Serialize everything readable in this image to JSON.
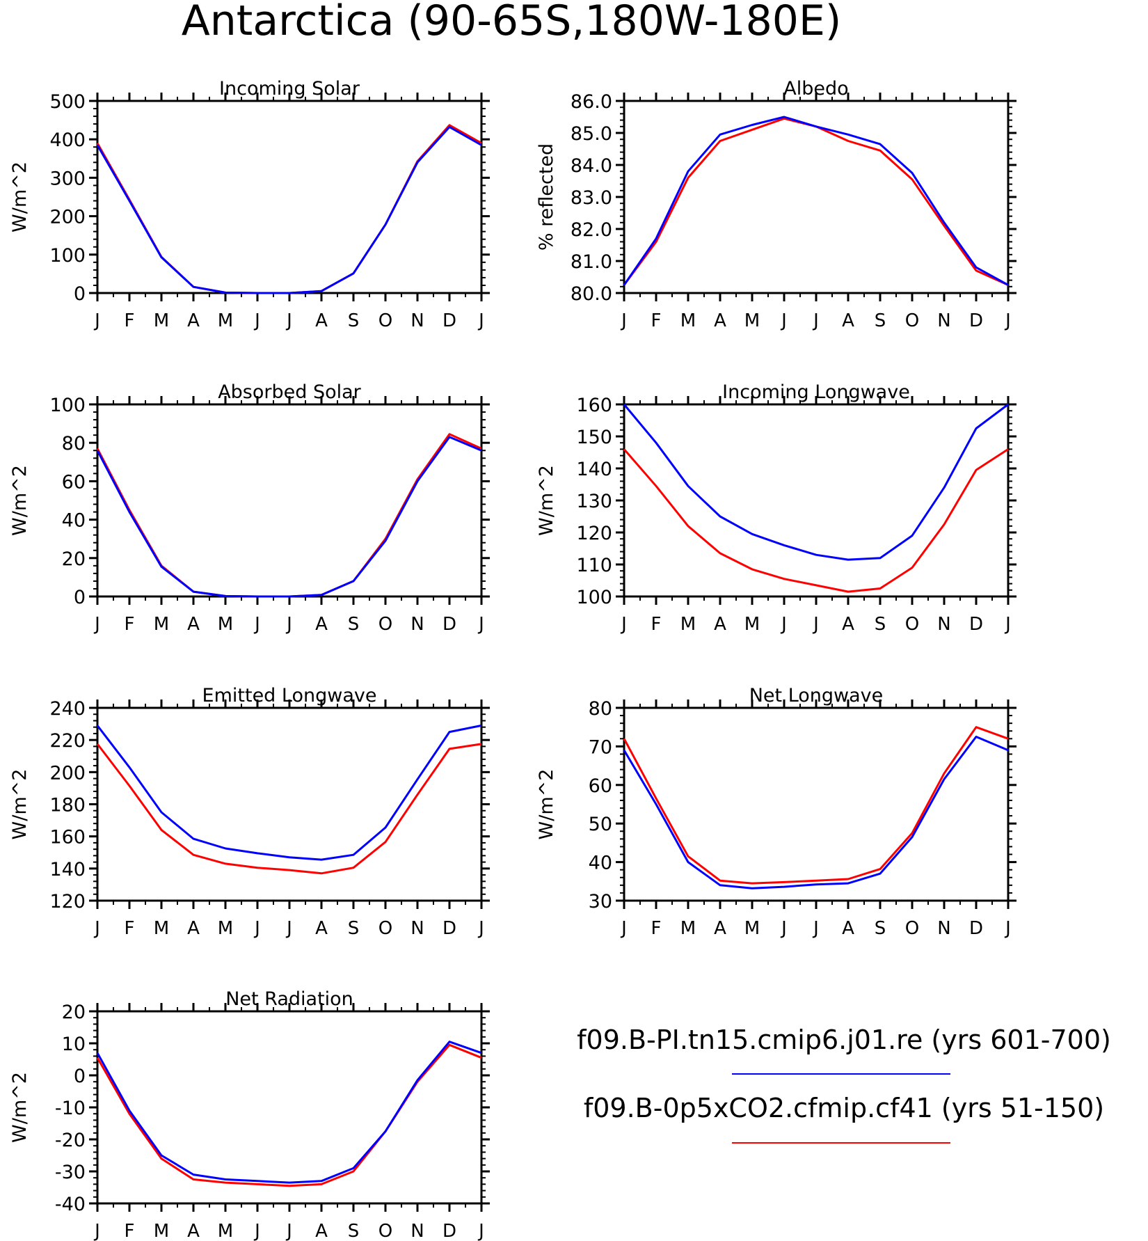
{
  "page_title": "Antarctica (90-65S,180W-180E)",
  "colors": {
    "run1": "#0000ff",
    "run2": "#ff0000",
    "axis": "#000000"
  },
  "legend": {
    "entries": [
      {
        "label": "f09.B-PI.tn15.cmip6.j01.re (yrs 601-700)",
        "color": "#0000ff"
      },
      {
        "label": "f09.B-0p5xCO2.cfmip.cf41 (yrs 51-150)",
        "color": "#ff0000"
      }
    ]
  },
  "chart_data": [
    {
      "type": "line",
      "title": "Incoming Solar",
      "ylabel": "W/m^2",
      "categories": [
        "J",
        "F",
        "M",
        "A",
        "M",
        "J",
        "J",
        "A",
        "S",
        "O",
        "N",
        "D",
        "J"
      ],
      "ylim": [
        0,
        500
      ],
      "yticks": [
        0,
        100,
        200,
        300,
        400,
        500
      ],
      "ytick_labels": [
        "0",
        "100",
        "200",
        "300",
        "400",
        "500"
      ],
      "series": [
        {
          "name": "f09.B-PI.tn15.cmip6.j01.re (yrs 601-700)",
          "color": "#0000ff",
          "values": [
            385,
            240,
            93,
            16,
            1,
            0,
            0,
            5,
            51,
            178,
            340,
            432,
            385
          ]
        },
        {
          "name": "f09.B-0p5xCO2.cfmip.cf41 (yrs 51-150)",
          "color": "#ff0000",
          "values": [
            390,
            243,
            94,
            16,
            1,
            0,
            0,
            5,
            51,
            178,
            343,
            437,
            390
          ]
        }
      ]
    },
    {
      "type": "line",
      "title": "Albedo",
      "ylabel": "% reflected",
      "categories": [
        "J",
        "F",
        "M",
        "A",
        "M",
        "J",
        "J",
        "A",
        "S",
        "O",
        "N",
        "D",
        "J"
      ],
      "ylim": [
        80,
        86
      ],
      "yticks": [
        80,
        81,
        82,
        83,
        84,
        85,
        86
      ],
      "ytick_labels": [
        "80.0",
        "81.0",
        "82.0",
        "83.0",
        "84.0",
        "85.0",
        "86.0"
      ],
      "series": [
        {
          "name": "f09.B-PI.tn15.cmip6.j01.re (yrs 601-700)",
          "color": "#0000ff",
          "values": [
            80.25,
            81.7,
            83.8,
            84.95,
            85.25,
            85.5,
            85.2,
            84.95,
            84.65,
            83.75,
            82.2,
            80.8,
            80.25
          ]
        },
        {
          "name": "f09.B-0p5xCO2.cfmip.cf41 (yrs 51-150)",
          "color": "#ff0000",
          "values": [
            80.25,
            81.6,
            83.6,
            84.75,
            85.1,
            85.45,
            85.2,
            84.75,
            84.45,
            83.55,
            82.1,
            80.7,
            80.25
          ]
        }
      ]
    },
    {
      "type": "line",
      "title": "Absorbed Solar",
      "ylabel": "W/m^2",
      "categories": [
        "J",
        "F",
        "M",
        "A",
        "M",
        "J",
        "J",
        "A",
        "S",
        "O",
        "N",
        "D",
        "J"
      ],
      "ylim": [
        0,
        100
      ],
      "yticks": [
        0,
        20,
        40,
        60,
        80,
        100
      ],
      "ytick_labels": [
        "0",
        "20",
        "40",
        "60",
        "80",
        "100"
      ],
      "series": [
        {
          "name": "f09.B-PI.tn15.cmip6.j01.re (yrs 601-700)",
          "color": "#0000ff",
          "values": [
            76,
            44,
            15.5,
            2.5,
            0.2,
            0,
            0,
            0.8,
            8,
            29,
            60,
            83,
            76
          ]
        },
        {
          "name": "f09.B-0p5xCO2.cfmip.cf41 (yrs 51-150)",
          "color": "#ff0000",
          "values": [
            77,
            45,
            16,
            2.5,
            0.2,
            0,
            0,
            0.8,
            8,
            30,
            61,
            84.5,
            77
          ]
        }
      ]
    },
    {
      "type": "line",
      "title": "Incoming Longwave",
      "ylabel": "W/m^2",
      "categories": [
        "J",
        "F",
        "M",
        "A",
        "M",
        "J",
        "J",
        "A",
        "S",
        "O",
        "N",
        "D",
        "J"
      ],
      "ylim": [
        100,
        160
      ],
      "yticks": [
        100,
        110,
        120,
        130,
        140,
        150,
        160
      ],
      "ytick_labels": [
        "100",
        "110",
        "120",
        "130",
        "140",
        "150",
        "160"
      ],
      "series": [
        {
          "name": "f09.B-PI.tn15.cmip6.j01.re (yrs 601-700)",
          "color": "#0000ff",
          "values": [
            160,
            148,
            134.5,
            125,
            119.5,
            116,
            113,
            111.5,
            112,
            119,
            134,
            152.5,
            160
          ]
        },
        {
          "name": "f09.B-0p5xCO2.cfmip.cf41 (yrs 51-150)",
          "color": "#ff0000",
          "values": [
            146,
            134.5,
            122,
            113.5,
            108.5,
            105.5,
            103.5,
            101.5,
            102.5,
            109,
            122.5,
            139.5,
            146
          ]
        }
      ]
    },
    {
      "type": "line",
      "title": "Emitted Longwave",
      "ylabel": "W/m^2",
      "categories": [
        "J",
        "F",
        "M",
        "A",
        "M",
        "J",
        "J",
        "A",
        "S",
        "O",
        "N",
        "D",
        "J"
      ],
      "ylim": [
        120,
        240
      ],
      "yticks": [
        120,
        140,
        160,
        180,
        200,
        220,
        240
      ],
      "ytick_labels": [
        "120",
        "140",
        "160",
        "180",
        "200",
        "220",
        "240"
      ],
      "series": [
        {
          "name": "f09.B-PI.tn15.cmip6.j01.re (yrs 601-700)",
          "color": "#0000ff",
          "values": [
            229,
            203,
            175,
            158.5,
            152.5,
            149.5,
            147,
            145.5,
            148.5,
            165.5,
            195.5,
            225,
            229
          ]
        },
        {
          "name": "f09.B-0p5xCO2.cfmip.cf41 (yrs 51-150)",
          "color": "#ff0000",
          "values": [
            217.5,
            191.5,
            164,
            148.5,
            143,
            140.5,
            139,
            137,
            140.5,
            156.5,
            186,
            214.5,
            217.5
          ]
        }
      ]
    },
    {
      "type": "line",
      "title": "Net Longwave",
      "ylabel": "W/m^2",
      "categories": [
        "J",
        "F",
        "M",
        "A",
        "M",
        "J",
        "J",
        "A",
        "S",
        "O",
        "N",
        "D",
        "J"
      ],
      "ylim": [
        30,
        80
      ],
      "yticks": [
        30,
        40,
        50,
        60,
        70,
        80
      ],
      "ytick_labels": [
        "30",
        "40",
        "50",
        "60",
        "70",
        "80"
      ],
      "series": [
        {
          "name": "f09.B-PI.tn15.cmip6.j01.re (yrs 601-700)",
          "color": "#0000ff",
          "values": [
            69,
            55,
            40,
            34,
            33.2,
            33.6,
            34.2,
            34.5,
            37,
            46.5,
            61.5,
            72.5,
            69
          ]
        },
        {
          "name": "f09.B-0p5xCO2.cfmip.cf41 (yrs 51-150)",
          "color": "#ff0000",
          "values": [
            72,
            56.5,
            41.5,
            35.2,
            34.5,
            34.8,
            35.2,
            35.6,
            38.2,
            47.5,
            63,
            75,
            72
          ]
        }
      ]
    },
    {
      "type": "line",
      "title": "Net Radiation",
      "ylabel": "W/m^2",
      "categories": [
        "J",
        "F",
        "M",
        "A",
        "M",
        "J",
        "J",
        "A",
        "S",
        "O",
        "N",
        "D",
        "J"
      ],
      "ylim": [
        -40,
        20
      ],
      "yticks": [
        -40,
        -30,
        -20,
        -10,
        0,
        10,
        20
      ],
      "ytick_labels": [
        "-40",
        "-30",
        "-20",
        "-10",
        "0",
        "10",
        "20"
      ],
      "series": [
        {
          "name": "f09.B-PI.tn15.cmip6.j01.re (yrs 601-700)",
          "color": "#0000ff",
          "values": [
            7,
            -11,
            -25,
            -31,
            -32.5,
            -33,
            -33.5,
            -33,
            -29,
            -17.5,
            -1.5,
            10.5,
            7
          ]
        },
        {
          "name": "f09.B-0p5xCO2.cfmip.cf41 (yrs 51-150)",
          "color": "#ff0000",
          "values": [
            5.5,
            -12,
            -26,
            -32.5,
            -33.5,
            -34,
            -34.5,
            -34,
            -30,
            -17.5,
            -2,
            9.5,
            5.5
          ]
        }
      ]
    }
  ]
}
